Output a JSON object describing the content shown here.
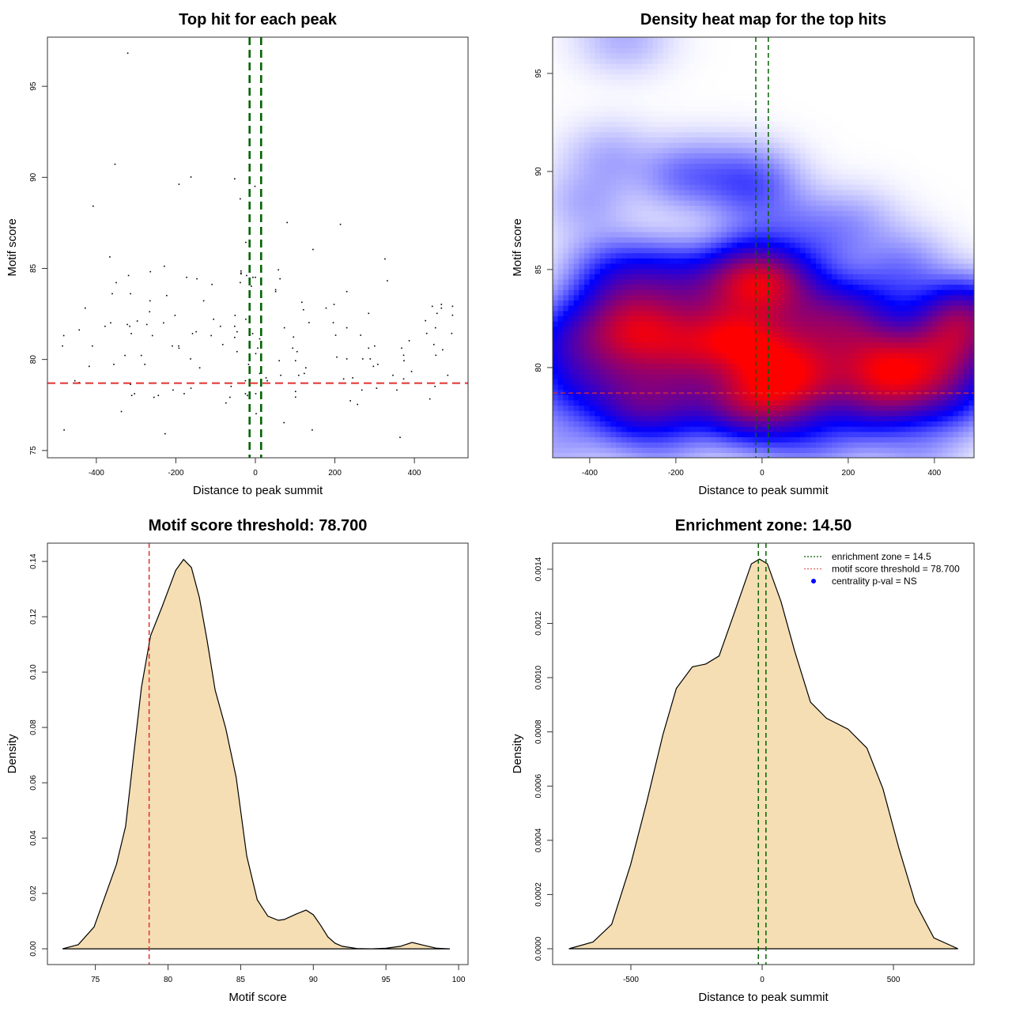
{
  "chart_data": [
    {
      "type": "scatter",
      "title": "Top hit for each peak",
      "xlabel": "Distance to peak summit",
      "ylabel": "Motif score",
      "xlim": [
        -523,
        535
      ],
      "ylim": [
        74.6,
        97.7
      ],
      "xticks": [
        -400,
        -200,
        0,
        200,
        400
      ],
      "yticks": [
        75,
        80,
        85,
        90,
        95
      ],
      "vlines": [
        -14.5,
        14.5
      ],
      "hline": 78.7,
      "colors": {
        "points": "#000000",
        "vlines": "#006400",
        "hline": "#E03030"
      },
      "points": [
        [
          -321,
          96.82
        ],
        [
          -353,
          90.72
        ],
        [
          -162,
          90.02
        ],
        [
          -192,
          89.62
        ],
        [
          -52,
          89.92
        ],
        [
          -1,
          89.51
        ],
        [
          -38,
          88.82
        ],
        [
          -408,
          88.42
        ],
        [
          -24,
          86.43
        ],
        [
          80,
          87.52
        ],
        [
          214,
          87.42
        ],
        [
          145,
          86.04
        ],
        [
          -366,
          85.63
        ],
        [
          -229,
          85.12
        ],
        [
          -264,
          84.82
        ],
        [
          -319,
          84.61
        ],
        [
          -173,
          84.51
        ],
        [
          -147,
          84.43
        ],
        [
          -350,
          84.22
        ],
        [
          -109,
          84.12
        ],
        [
          -36,
          84.86
        ],
        [
          -36,
          84.75
        ],
        [
          -36,
          84.7
        ],
        [
          -22,
          84.61
        ],
        [
          -6,
          84.51
        ],
        [
          0,
          84.51
        ],
        [
          -38,
          84.22
        ],
        [
          -10,
          84.02
        ],
        [
          -15,
          83.72
        ],
        [
          -360,
          83.61
        ],
        [
          -314,
          83.61
        ],
        [
          -223,
          83.51
        ],
        [
          -265,
          83.22
        ],
        [
          -130,
          83.22
        ],
        [
          -428,
          82.82
        ],
        [
          -266,
          82.62
        ],
        [
          -202,
          82.42
        ],
        [
          -51,
          82.42
        ],
        [
          -105,
          82.21
        ],
        [
          -24,
          82.21
        ],
        [
          -364,
          82.01
        ],
        [
          -231,
          82.01
        ],
        [
          -297,
          82.11
        ],
        [
          -322,
          81.92
        ],
        [
          -273,
          81.92
        ],
        [
          -378,
          81.82
        ],
        [
          -316,
          81.82
        ],
        [
          -88,
          81.82
        ],
        [
          -52,
          81.82
        ],
        [
          -443,
          81.62
        ],
        [
          -149,
          81.52
        ],
        [
          -158,
          81.42
        ],
        [
          -46,
          81.52
        ],
        [
          -312,
          81.42
        ],
        [
          -7,
          81.42
        ],
        [
          -482,
          81.31
        ],
        [
          -259,
          81.31
        ],
        [
          -111,
          81.31
        ],
        [
          -52,
          81.21
        ],
        [
          11,
          81.13
        ],
        [
          -485,
          80.74
        ],
        [
          -410,
          80.74
        ],
        [
          -209,
          80.74
        ],
        [
          -193,
          80.74
        ],
        [
          -192,
          80.62
        ],
        [
          -82,
          80.82
        ],
        [
          6,
          80.62
        ],
        [
          1,
          80.32
        ],
        [
          -328,
          80.22
        ],
        [
          -287,
          80.22
        ],
        [
          -46,
          80.43
        ],
        [
          -163,
          80.03
        ],
        [
          -17,
          79.73
        ],
        [
          -356,
          79.73
        ],
        [
          -278,
          79.73
        ],
        [
          -418,
          79.62
        ],
        [
          -140,
          79.54
        ],
        [
          11,
          79.23
        ],
        [
          -454,
          78.83
        ],
        [
          -443,
          78.73
        ],
        [
          -25,
          78.83
        ],
        [
          -314,
          78.63
        ],
        [
          -61,
          78.52
        ],
        [
          -207,
          78.32
        ],
        [
          -162,
          78.42
        ],
        [
          -304,
          78.12
        ],
        [
          -311,
          78.02
        ],
        [
          -179,
          78.12
        ],
        [
          -25,
          78.12
        ],
        [
          -20,
          78.02
        ],
        [
          1,
          78.12
        ],
        [
          -255,
          77.92
        ],
        [
          -244,
          78.02
        ],
        [
          -64,
          77.92
        ],
        [
          -74,
          77.61
        ],
        [
          -337,
          77.14
        ],
        [
          2,
          77.02
        ],
        [
          -481,
          76.13
        ],
        [
          -227,
          75.92
        ],
        [
          326,
          85.52
        ],
        [
          58,
          84.92
        ],
        [
          62,
          84.43
        ],
        [
          332,
          84.32
        ],
        [
          51,
          83.83
        ],
        [
          51,
          83.73
        ],
        [
          230,
          83.73
        ],
        [
          117,
          83.14
        ],
        [
          121,
          82.73
        ],
        [
          178,
          82.82
        ],
        [
          198,
          83.02
        ],
        [
          445,
          82.92
        ],
        [
          468,
          83.02
        ],
        [
          468,
          82.82
        ],
        [
          496,
          82.92
        ],
        [
          457,
          82.53
        ],
        [
          496,
          82.43
        ],
        [
          285,
          82.53
        ],
        [
          135,
          82.02
        ],
        [
          196,
          82.02
        ],
        [
          428,
          82.13
        ],
        [
          73,
          81.74
        ],
        [
          230,
          81.74
        ],
        [
          453,
          81.74
        ],
        [
          431,
          81.43
        ],
        [
          494,
          81.43
        ],
        [
          96,
          81.23
        ],
        [
          202,
          81.33
        ],
        [
          265,
          81.33
        ],
        [
          387,
          81.03
        ],
        [
          94,
          80.62
        ],
        [
          105,
          80.43
        ],
        [
          285,
          80.62
        ],
        [
          300,
          80.74
        ],
        [
          449,
          80.82
        ],
        [
          471,
          80.53
        ],
        [
          368,
          80.62
        ],
        [
          454,
          80.23
        ],
        [
          373,
          80.23
        ],
        [
          374,
          79.93
        ],
        [
          60,
          79.93
        ],
        [
          101,
          79.93
        ],
        [
          205,
          80.13
        ],
        [
          230,
          80.03
        ],
        [
          270,
          80.03
        ],
        [
          289,
          80.03
        ],
        [
          297,
          79.62
        ],
        [
          308,
          79.73
        ],
        [
          127,
          79.54
        ],
        [
          123,
          79.23
        ],
        [
          109,
          79.13
        ],
        [
          64,
          79.13
        ],
        [
          27,
          78.99
        ],
        [
          30,
          78.83
        ],
        [
          222,
          78.93
        ],
        [
          245,
          78.99
        ],
        [
          346,
          79.13
        ],
        [
          393,
          79.34
        ],
        [
          373,
          78.93
        ],
        [
          484,
          79.13
        ],
        [
          452,
          78.52
        ],
        [
          268,
          78.32
        ],
        [
          305,
          78.42
        ],
        [
          356,
          78.32
        ],
        [
          101,
          78.24
        ],
        [
          101,
          77.93
        ],
        [
          439,
          77.83
        ],
        [
          239,
          77.73
        ],
        [
          257,
          77.53
        ],
        [
          72,
          76.53
        ],
        [
          143,
          76.13
        ],
        [
          364,
          75.72
        ]
      ]
    },
    {
      "type": "heatmap",
      "title": "Density heat map for the top hits",
      "xlabel": "Distance to peak summit",
      "ylabel": "Motif score",
      "xlim": [
        -486,
        492
      ],
      "ylim": [
        75.4,
        96.85
      ],
      "xticks": [
        -400,
        -200,
        0,
        200,
        400
      ],
      "yticks": [
        80,
        85,
        90,
        95
      ],
      "vlines": [
        -14.5,
        14.5
      ],
      "hline": 78.7,
      "colors": {
        "palette": [
          "#FFFFFF",
          "#0000FF",
          "#FF0000"
        ],
        "vlines": "#006400",
        "hline": "#E03030"
      }
    },
    {
      "type": "area",
      "title": "Motif score threshold: 78.700",
      "xlabel": "Motif score",
      "ylabel": "Density",
      "xlim": [
        71.7,
        100.65
      ],
      "ylim": [
        -0.0057,
        0.1466
      ],
      "xticks": [
        75,
        80,
        85,
        90,
        95,
        100
      ],
      "yticks": [
        "0.00",
        "0.02",
        "0.04",
        "0.06",
        "0.08",
        "0.10",
        "0.12",
        "0.14"
      ],
      "vlines": [
        78.7
      ],
      "colors": {
        "fill": "#F5DEB3",
        "line": "#000000",
        "vlines": "#E03030"
      },
      "x": [
        72.74,
        73.82,
        74.91,
        76.45,
        77.08,
        77.63,
        78.17,
        78.8,
        79.62,
        80.53,
        81.07,
        81.61,
        82.16,
        82.7,
        83.24,
        83.97,
        84.69,
        85.42,
        86.14,
        86.87,
        87.59,
        88,
        88.8,
        89.5,
        90,
        90.5,
        91,
        91.5,
        92,
        93,
        94,
        95,
        96,
        96.8,
        97.5,
        98.5,
        99.4
      ],
      "y": [
        0,
        0.0015,
        0.0079,
        0.0305,
        0.0443,
        0.0699,
        0.0945,
        0.1132,
        0.124,
        0.1368,
        0.1407,
        0.1378,
        0.1269,
        0.1112,
        0.0935,
        0.0797,
        0.062,
        0.0335,
        0.0177,
        0.0118,
        0.0103,
        0.0106,
        0.0125,
        0.014,
        0.0123,
        0.0085,
        0.0043,
        0.002,
        0.0009,
        0.0001,
        0,
        0.0002,
        0.0009,
        0.0023,
        0.0014,
        0.0002,
        0
      ]
    },
    {
      "type": "area",
      "title": "Enrichment zone: 14.50",
      "xlabel": "Distance to peak summit",
      "ylabel": "Density",
      "xlim": [
        -798,
        807
      ],
      "ylim": [
        -5.83e-05,
        0.001496
      ],
      "xticks": [
        -500,
        0,
        500
      ],
      "yticks": [
        "0.0000",
        "0.0002",
        "0.0004",
        "0.0006",
        "0.0008",
        "0.0010",
        "0.0012",
        "0.0014"
      ],
      "vlines": [
        -14.5,
        14.5
      ],
      "colors": {
        "fill": "#F5DEB3",
        "line": "#000000",
        "vlines": "#006400"
      },
      "x": [
        -736,
        -644,
        -573,
        -501,
        -440,
        -378,
        -327,
        -266,
        -215,
        -164,
        -102,
        -41,
        -10,
        20,
        72,
        123,
        184,
        245,
        327,
        399,
        460,
        521,
        583,
        654,
        746
      ],
      "y": [
        0,
        2.5e-05,
        9e-05,
        0.00031,
        0.00054,
        0.00079,
        0.00096,
        0.00104,
        0.00105,
        0.00108,
        0.00125,
        0.00142,
        0.001437,
        0.00142,
        0.00128,
        0.0011,
        0.00091,
        0.00085,
        0.00081,
        0.00074,
        0.00059,
        0.00037,
        0.00017,
        4e-05,
        0
      ],
      "legend": {
        "placement": "top-right",
        "entries": [
          {
            "label": "enrichment zone = 14.5",
            "symbol": "dotted-line",
            "color": "#006400"
          },
          {
            "label": "motif score threshold = 78.700",
            "symbol": "dotted-line",
            "color": "#E06060"
          },
          {
            "label": "centrality p-val = NS",
            "symbol": "dot",
            "color": "#0000FF"
          }
        ]
      }
    }
  ]
}
